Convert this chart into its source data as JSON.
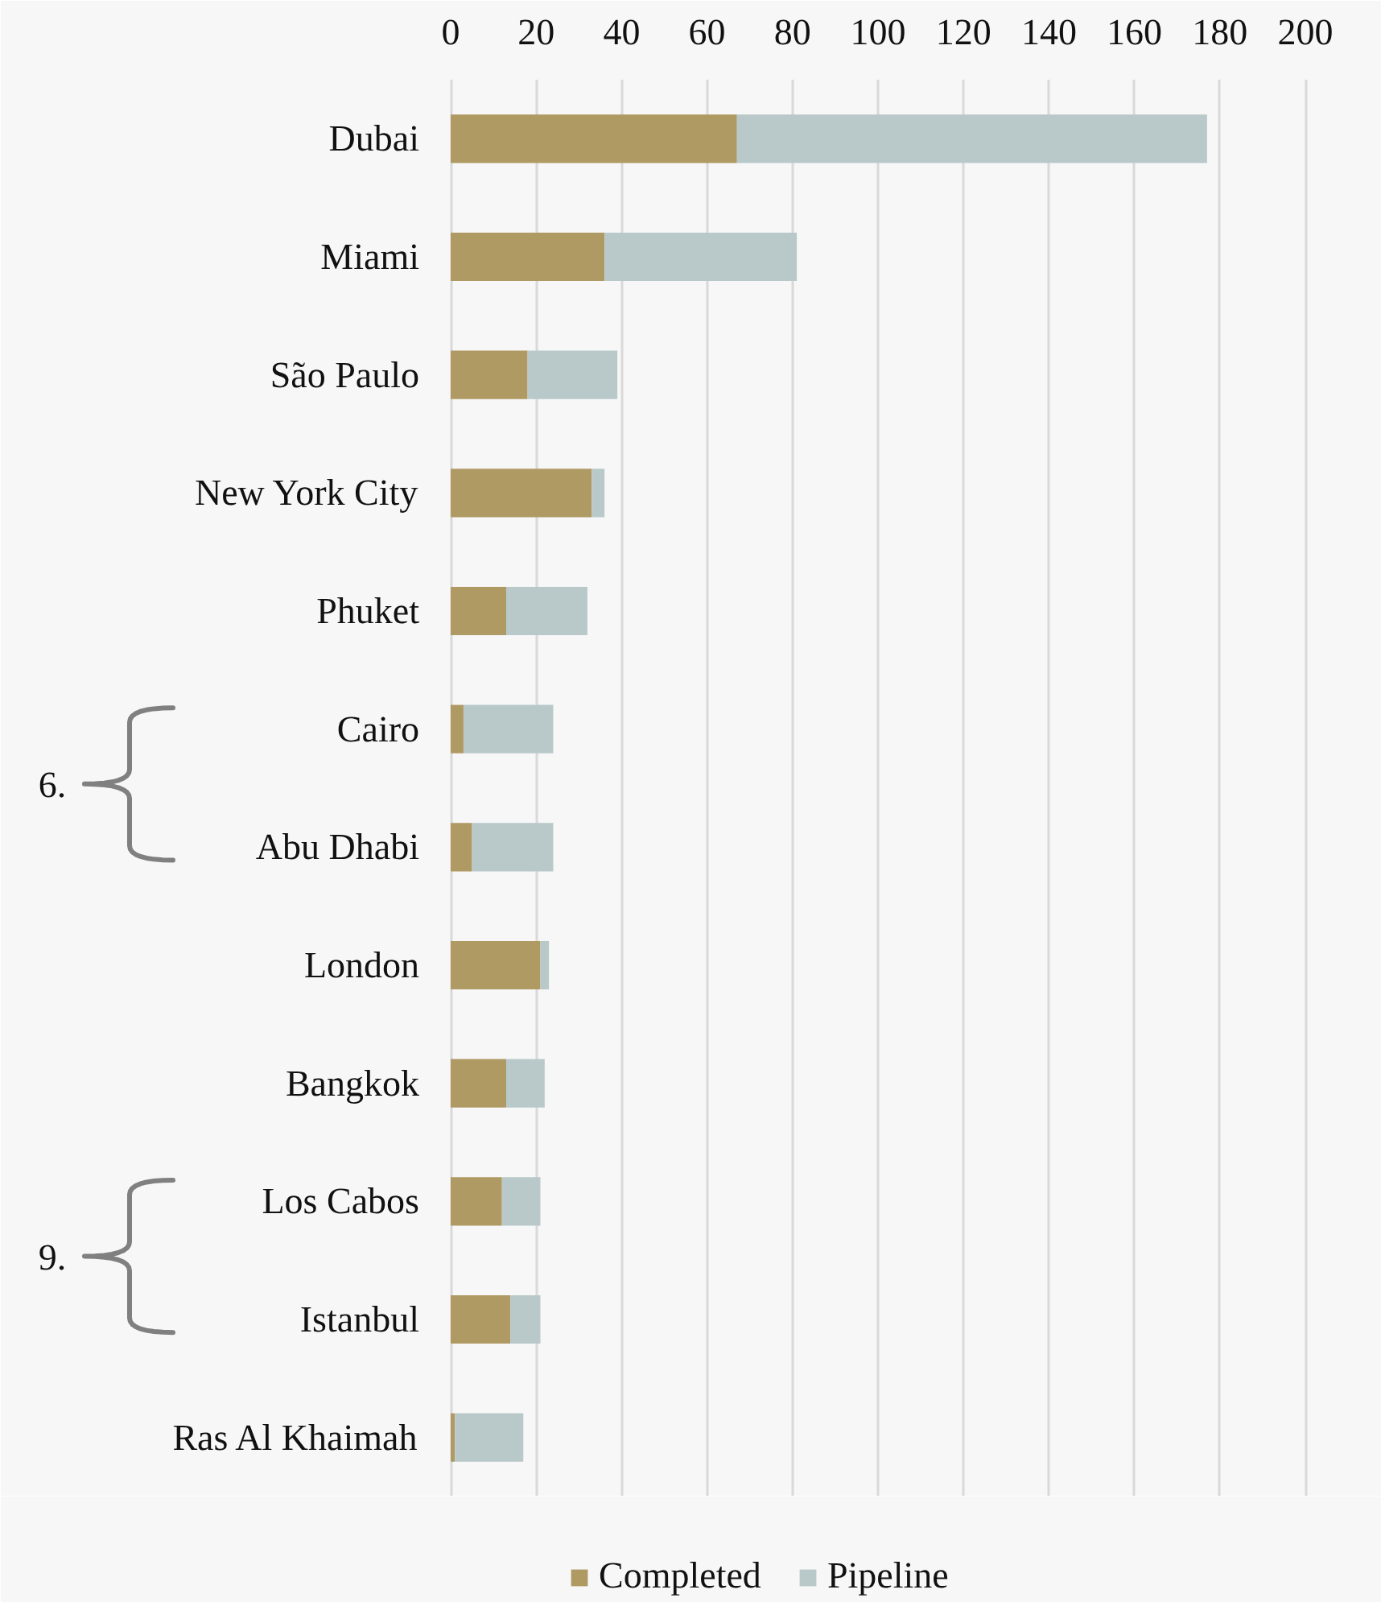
{
  "chart_data": {
    "type": "bar",
    "orientation": "horizontal",
    "stacked": true,
    "categories": [
      "Dubai",
      "Miami",
      "São Paulo",
      "New York City",
      "Phuket",
      "Cairo",
      "Abu Dhabi",
      "London",
      "Bangkok",
      "Los Cabos",
      "Istanbul",
      "Ras Al Khaimah"
    ],
    "series": [
      {
        "name": "Completed",
        "color": "#b09a64",
        "values": [
          67,
          36,
          18,
          33,
          13,
          3,
          5,
          21,
          13,
          12,
          14,
          1
        ]
      },
      {
        "name": "Pipeline",
        "color": "#b9c9c9",
        "values": [
          110,
          45,
          21,
          3,
          19,
          21,
          19,
          2,
          9,
          9,
          7,
          16
        ]
      }
    ],
    "xlim": [
      0,
      200
    ],
    "xticks": [
      0,
      20,
      40,
      60,
      80,
      100,
      120,
      140,
      160,
      180,
      200
    ],
    "grid": "x",
    "legend": "bottom",
    "annotations": [
      "6.",
      "9."
    ]
  }
}
